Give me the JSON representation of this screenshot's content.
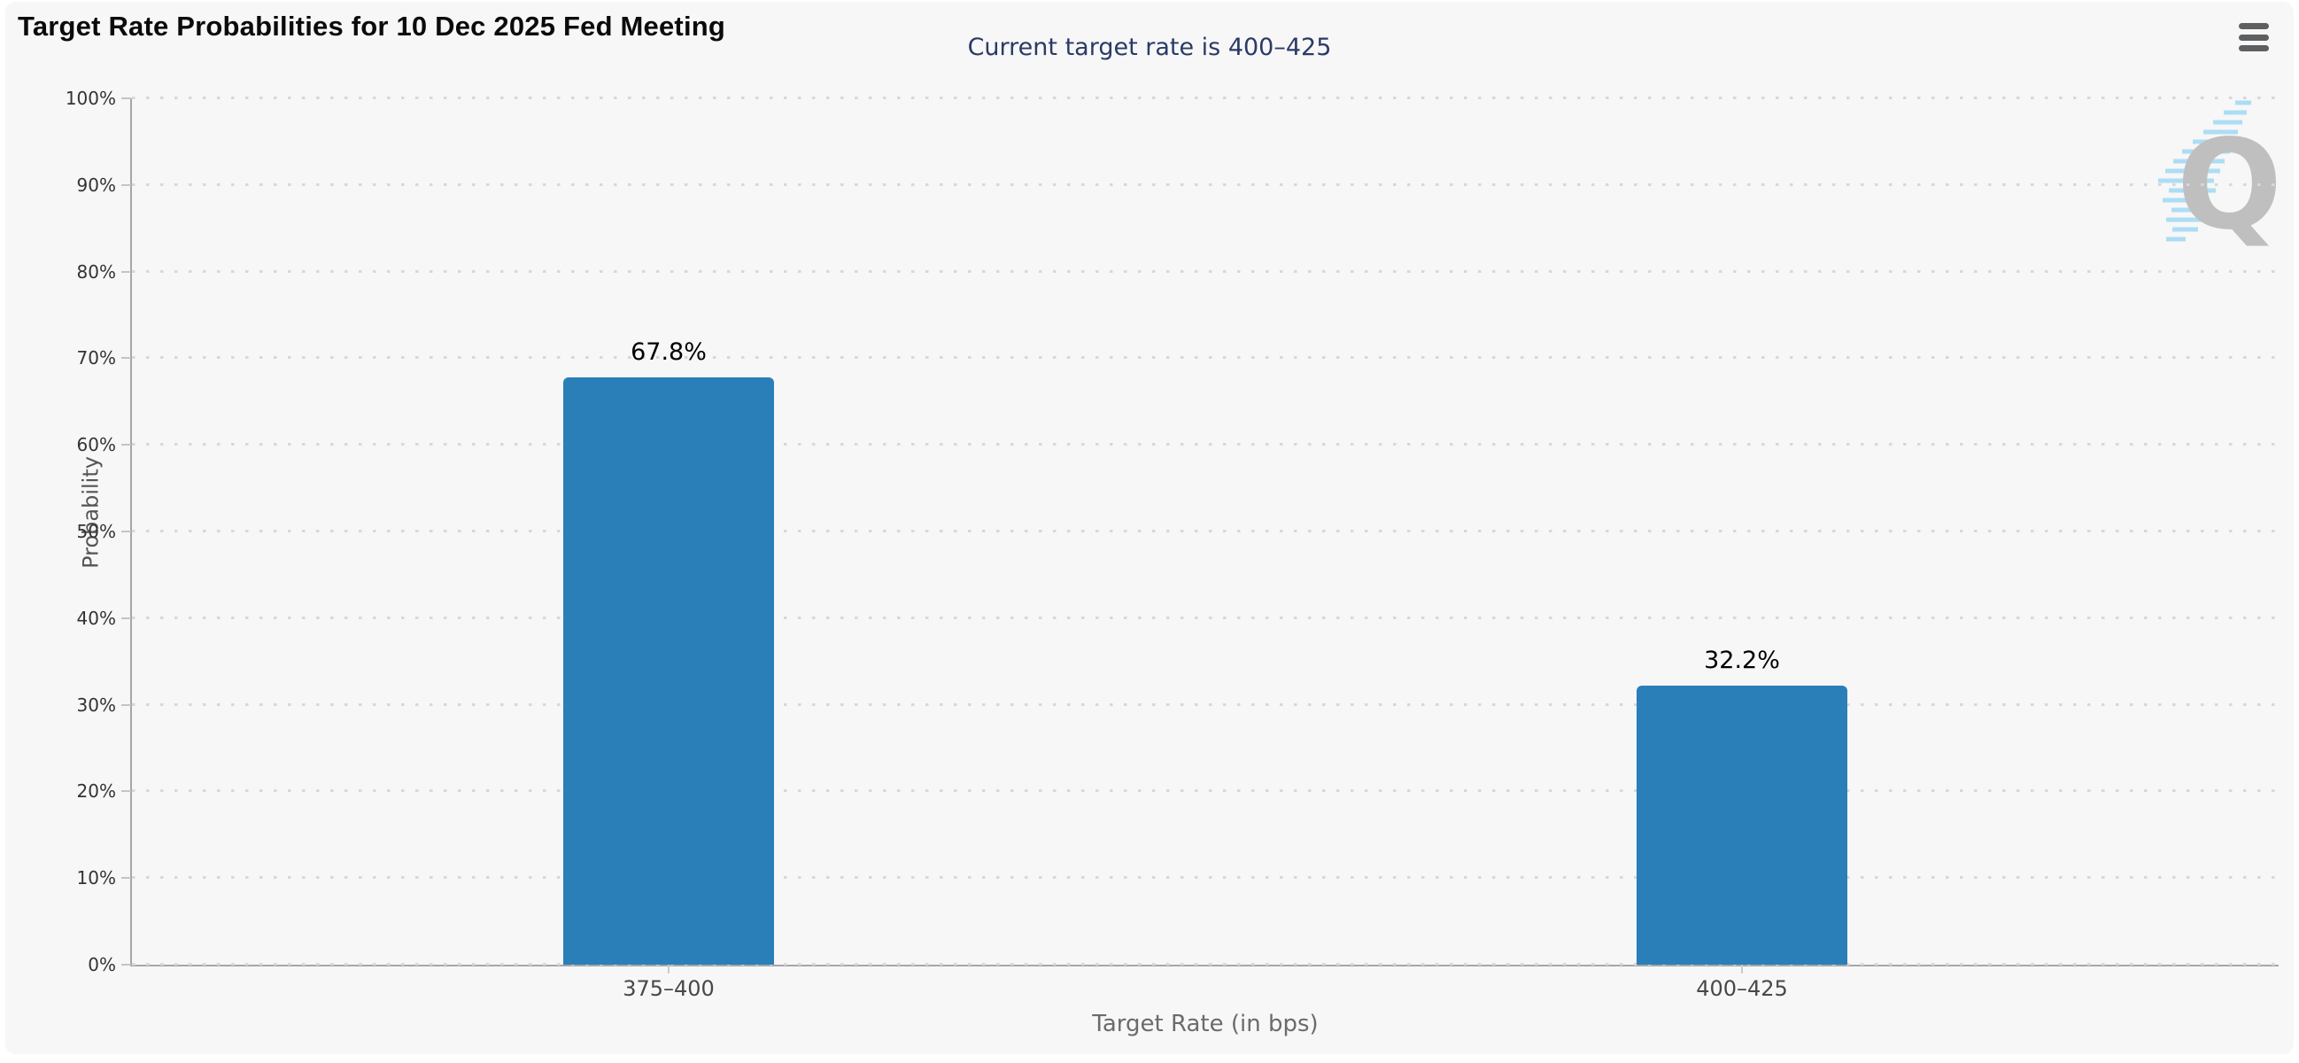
{
  "header": {
    "title": "Target Rate Probabilities for 10 Dec 2025 Fed Meeting"
  },
  "toolbar": {
    "menu_icon": "hamburger-menu-icon"
  },
  "watermark": {
    "letter": "Q"
  },
  "chart_data": {
    "type": "bar",
    "title": "Target Rate Probabilities for 10 Dec 2025 Fed Meeting",
    "subtitle": "Current target rate is 400–425",
    "categories": [
      "375–400",
      "400–425"
    ],
    "values": [
      67.8,
      32.2
    ],
    "value_labels": [
      "67.8%",
      "32.2%"
    ],
    "xlabel": "Target Rate (in bps)",
    "ylabel": "Probability",
    "ylim": [
      0,
      100
    ],
    "ytick_step": 10,
    "ytick_suffix": "%",
    "grid": "horizontal-dotted",
    "legend": "none",
    "bar_color": "#2a7fb8",
    "subtitle_color": "#2b3a66"
  }
}
